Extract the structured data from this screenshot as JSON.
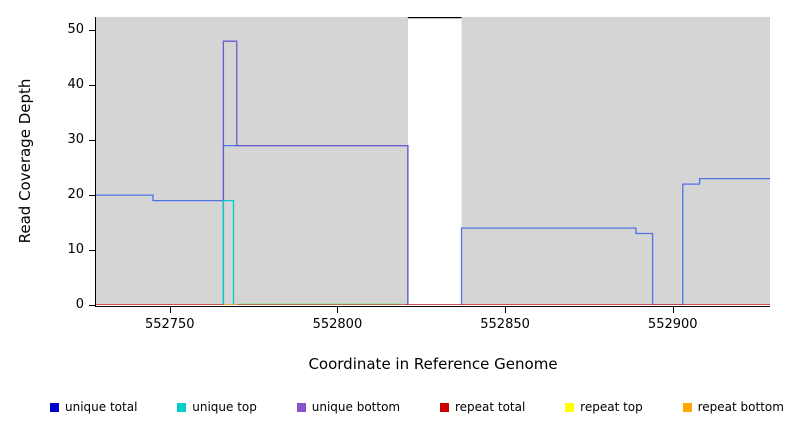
{
  "chart_data": {
    "type": "line",
    "title": "",
    "xlabel": "Coordinate in Reference Genome",
    "ylabel": "Read Coverage Depth",
    "xlim": [
      552728,
      552929
    ],
    "ylim": [
      0,
      52.4
    ],
    "xticks": [
      552750,
      552800,
      552850,
      552900
    ],
    "yticks": [
      0,
      10,
      20,
      30,
      40,
      50
    ],
    "grid": false,
    "plot_background": "#ffffff",
    "shaded_region_color": "#d5d5d5",
    "background_regions": [
      {
        "x0": 552728,
        "x1": 552821
      },
      {
        "x0": 552837,
        "x1": 552929
      }
    ],
    "gap_top_line": {
      "x0": 552821,
      "x1": 552837,
      "color": "#000000"
    },
    "series": [
      {
        "name": "unique total",
        "color": "#4f74e3",
        "points": [
          [
            552728,
            20
          ],
          [
            552745,
            20
          ],
          [
            552745,
            19
          ],
          [
            552766,
            19
          ],
          [
            552766,
            29
          ],
          [
            552821,
            29
          ],
          [
            552821,
            0
          ],
          [
            552837,
            0
          ],
          [
            552837,
            14
          ],
          [
            552889,
            14
          ],
          [
            552889,
            13
          ],
          [
            552894,
            13
          ],
          [
            552894,
            0
          ],
          [
            552903,
            0
          ],
          [
            552903,
            22
          ],
          [
            552908,
            22
          ],
          [
            552908,
            23
          ],
          [
            552929,
            23
          ]
        ]
      },
      {
        "name": "unique bottom",
        "color": "#6a5acd",
        "points": [
          [
            552766,
            0
          ],
          [
            552766,
            48
          ],
          [
            552770,
            48
          ],
          [
            552770,
            29
          ],
          [
            552821,
            29
          ],
          [
            552821,
            0
          ]
        ]
      },
      {
        "name": "unique top",
        "color": "#00cdcd",
        "points": [
          [
            552766,
            0
          ],
          [
            552766,
            19
          ],
          [
            552769,
            19
          ],
          [
            552769,
            0
          ]
        ]
      },
      {
        "name": "repeat total",
        "color": "#cd0000",
        "points": [
          [
            552728,
            0
          ],
          [
            552929,
            0
          ]
        ]
      },
      {
        "name": "repeat top",
        "color": "#9ce89c",
        "points": [
          [
            552770,
            0.2
          ],
          [
            552820,
            0.2
          ]
        ]
      },
      {
        "name": "repeat bottom",
        "color": "#ffa500",
        "points": [
          [
            552766,
            0
          ],
          [
            552770,
            0
          ]
        ]
      }
    ],
    "legend": [
      {
        "label": "unique total",
        "color": "#0000cd"
      },
      {
        "label": "unique top",
        "color": "#00cdcd"
      },
      {
        "label": "unique bottom",
        "color": "#8a52cc"
      },
      {
        "label": "repeat total",
        "color": "#cd0000"
      },
      {
        "label": "repeat top",
        "color": "#ffff00"
      },
      {
        "label": "repeat bottom",
        "color": "#ffa500"
      }
    ],
    "legend_position": "bottom"
  }
}
